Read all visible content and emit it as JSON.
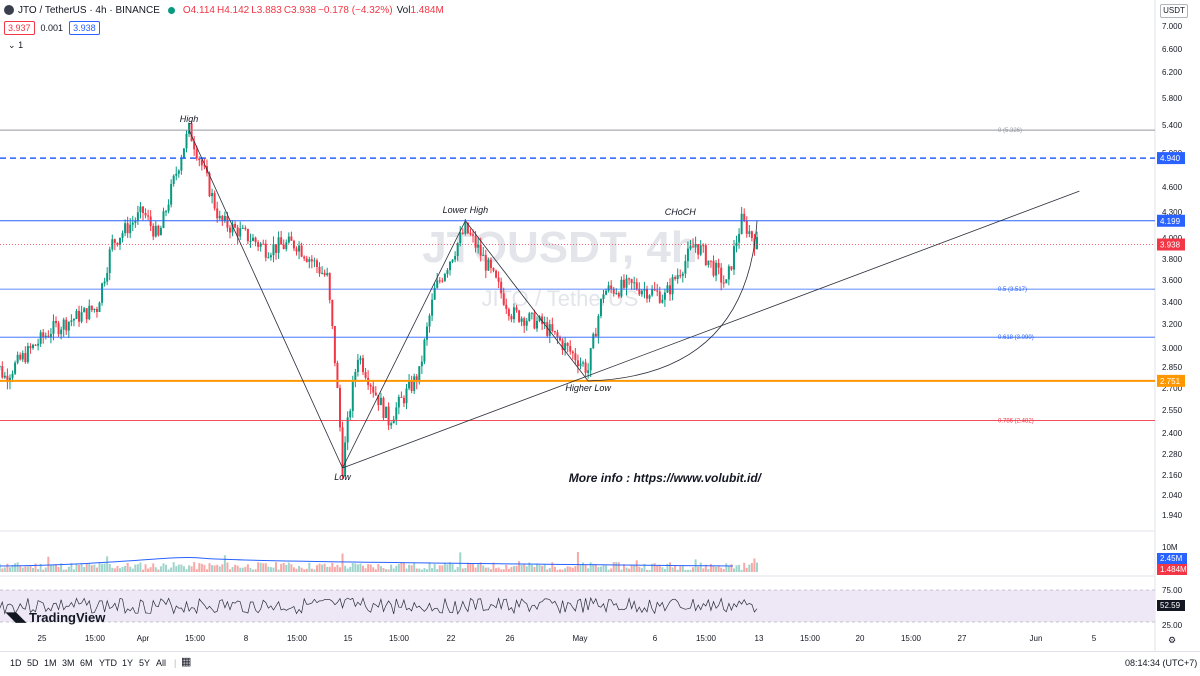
{
  "header": {
    "symbol": "JTO / TetherUS · 4h · BINANCE",
    "open": "O4.114",
    "high": "H4.142",
    "low": "L3.883",
    "close": "C3.938",
    "change": "−0.178 (−4.32%)",
    "volume_label": "Vol",
    "volume": "1.484M",
    "bid": "3.937",
    "spread": "0.001",
    "ask": "3.938",
    "indicator_toggle": "1"
  },
  "currency_button": "USDT",
  "watermark": {
    "symbol": "JTOUSDT, 4h",
    "name": "JITO / TetherUS"
  },
  "colors": {
    "up": "#089981",
    "down": "#f23645",
    "blue": "#2962ff",
    "orange": "#ff9800",
    "rsi": "#7e57c2"
  },
  "chart_data": {
    "type": "candlestick",
    "y_axis_ticks": [
      "7.000",
      "6.600",
      "6.200",
      "5.800",
      "5.400",
      "5.000",
      "4.600",
      "4.300",
      "4.000",
      "3.800",
      "3.600",
      "3.400",
      "3.200",
      "3.000",
      "2.850",
      "2.700",
      "2.550",
      "2.400",
      "2.280",
      "2.160",
      "2.040",
      "1.940"
    ],
    "x_axis_ticks": [
      "25",
      "15:00",
      "Apr",
      "15:00",
      "8",
      "15:00",
      "15",
      "15:00",
      "22",
      "26",
      "May",
      "6",
      "15:00",
      "13",
      "15:00",
      "20",
      "15:00",
      "27",
      "Jun",
      "5"
    ],
    "anchors": [
      {
        "date": "2024-03-22",
        "price": 2.95
      },
      {
        "date": "2024-03-23",
        "price": 2.78
      },
      {
        "date": "2024-03-26",
        "price": 3.15
      },
      {
        "date": "2024-03-29",
        "price": 3.35
      },
      {
        "date": "2024-03-30",
        "price": 3.95
      },
      {
        "date": "2024-04-01",
        "price": 4.3
      },
      {
        "date": "2024-04-02",
        "price": 4.0
      },
      {
        "date": "2024-04-04",
        "price": 5.326
      },
      {
        "date": "2024-04-06",
        "price": 4.2
      },
      {
        "date": "2024-04-09",
        "price": 3.9
      },
      {
        "date": "2024-04-11",
        "price": 3.95
      },
      {
        "date": "2024-04-13",
        "price": 3.62
      },
      {
        "date": "2024-04-14",
        "price": 2.2
      },
      {
        "date": "2024-04-15",
        "price": 2.95
      },
      {
        "date": "2024-04-16",
        "price": 2.7
      },
      {
        "date": "2024-04-17",
        "price": 2.48
      },
      {
        "date": "2024-04-19",
        "price": 2.8
      },
      {
        "date": "2024-04-20",
        "price": 3.5
      },
      {
        "date": "2024-04-22",
        "price": 4.1
      },
      {
        "date": "2024-04-23",
        "price": 3.85
      },
      {
        "date": "2024-04-25",
        "price": 3.3
      },
      {
        "date": "2024-04-27",
        "price": 3.2
      },
      {
        "date": "2024-04-29",
        "price": 2.95
      },
      {
        "date": "2024-04-30",
        "price": 2.83
      },
      {
        "date": "2024-05-01",
        "price": 3.5
      },
      {
        "date": "2024-05-03",
        "price": 3.55
      },
      {
        "date": "2024-05-05",
        "price": 3.45
      },
      {
        "date": "2024-05-07",
        "price": 3.95
      },
      {
        "date": "2024-05-09",
        "price": 3.55
      },
      {
        "date": "2024-05-10",
        "price": 4.2
      },
      {
        "date": "2024-05-11",
        "price": 3.938
      }
    ],
    "price_lines": [
      {
        "price": 5.326,
        "label": "0 (5.326)",
        "color": "#9598a1",
        "style": "solid"
      },
      {
        "price": 4.94,
        "label": "4.940",
        "color": "#2962ff",
        "style": "dashed"
      },
      {
        "price": 4.199,
        "label": "4.199",
        "color": "#2962ff",
        "style": "solid"
      },
      {
        "price": 3.517,
        "label": "0.5 (3.517)",
        "color": "#2962ff",
        "style": "thin"
      },
      {
        "price": 3.09,
        "label": "0.618 (3.090)",
        "color": "#2962ff",
        "style": "thin"
      },
      {
        "price": 2.751,
        "label": "2.751",
        "color": "#ff9800",
        "style": "thick"
      },
      {
        "price": 2.482,
        "label": "0.786 (2.482)",
        "color": "#f23645",
        "style": "thin"
      }
    ],
    "last_price": {
      "price": 3.938,
      "label": "3.938"
    },
    "annotations": [
      {
        "text": "High",
        "date": "2024-04-04",
        "price": 5.326
      },
      {
        "text": "Lower High",
        "date": "2024-04-22",
        "price": 4.199
      },
      {
        "text": "CHoCH",
        "date": "2024-05-06",
        "price": 4.199
      },
      {
        "text": "Low",
        "date": "2024-04-14",
        "price": 2.2
      },
      {
        "text": "Higher Low",
        "date": "2024-04-30",
        "price": 2.75
      },
      {
        "text": "More info : https://www.volubit.id/",
        "date": "2024-05-05",
        "price": 2.2
      }
    ],
    "swing_lines": [
      {
        "from": {
          "date": "2024-04-04",
          "price": 5.326
        },
        "to": {
          "date": "2024-04-14",
          "price": 2.2
        }
      },
      {
        "from": {
          "date": "2024-04-14",
          "price": 2.2
        },
        "to": {
          "date": "2024-04-22",
          "price": 4.199
        }
      },
      {
        "from": {
          "date": "2024-04-22",
          "price": 4.199
        },
        "to": {
          "date": "2024-04-30",
          "price": 2.75
        }
      }
    ],
    "trendline": {
      "from": {
        "date": "2024-04-14",
        "price": 2.2
      },
      "to": {
        "date": "2024-06-01",
        "price": 4.55
      }
    },
    "volume": {
      "ma_label": "2.45M",
      "last_label": "1.484M",
      "axis_label": "10M"
    },
    "rsi": {
      "value": "52.59",
      "levels": [
        "75.00",
        "25.00"
      ]
    }
  },
  "bottom_bar": {
    "timeframes": [
      "1D",
      "5D",
      "1M",
      "3M",
      "6M",
      "YTD",
      "1Y",
      "5Y",
      "All"
    ],
    "clock": "08:14:34 (UTC+7)"
  },
  "branding": "TradingView"
}
